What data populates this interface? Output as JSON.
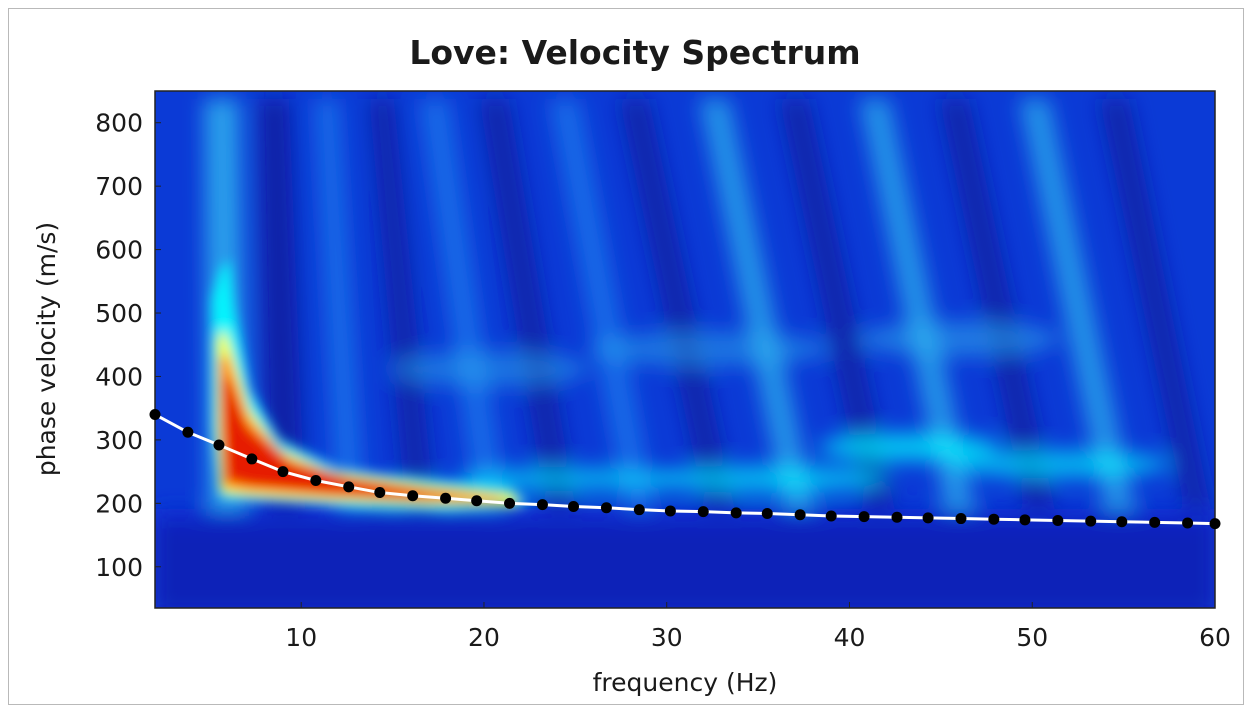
{
  "chart_data": {
    "type": "heatmap",
    "title": "Love: Velocity Spectrum",
    "xlabel": "frequency (Hz)",
    "ylabel": "phase velocity (m/s)",
    "xlim": [
      2,
      60
    ],
    "ylim": [
      35,
      850
    ],
    "xticks": [
      10,
      20,
      30,
      40,
      50,
      60
    ],
    "yticks": [
      100,
      200,
      300,
      400,
      500,
      600,
      700,
      800
    ],
    "grid": false,
    "colormap": [
      "#00007f",
      "#0000ff",
      "#0080ff",
      "#00ffff",
      "#ffff00",
      "#ff8000",
      "#ff0000",
      "#7f0000"
    ],
    "series": [
      {
        "marker_color": "#000000",
        "line_color": "#ffffff",
        "x": [
          2.0,
          3.8,
          5.5,
          7.3,
          9.0,
          10.8,
          12.6,
          14.3,
          16.1,
          17.9,
          19.6,
          21.4,
          23.2,
          24.9,
          26.7,
          28.5,
          30.2,
          32.0,
          33.8,
          35.5,
          37.3,
          39.0,
          40.8,
          42.6,
          44.3,
          46.1,
          47.9,
          49.6,
          51.4,
          53.2,
          54.9,
          56.7,
          58.5,
          60.0
        ],
        "y": [
          340,
          312,
          292,
          270,
          250,
          236,
          226,
          217,
          212,
          208,
          204,
          200,
          198,
          195,
          193,
          190,
          188,
          187,
          185,
          184,
          182,
          180,
          179,
          178,
          177,
          176,
          175,
          174,
          173,
          172,
          171,
          170,
          169,
          168
        ]
      }
    ]
  }
}
